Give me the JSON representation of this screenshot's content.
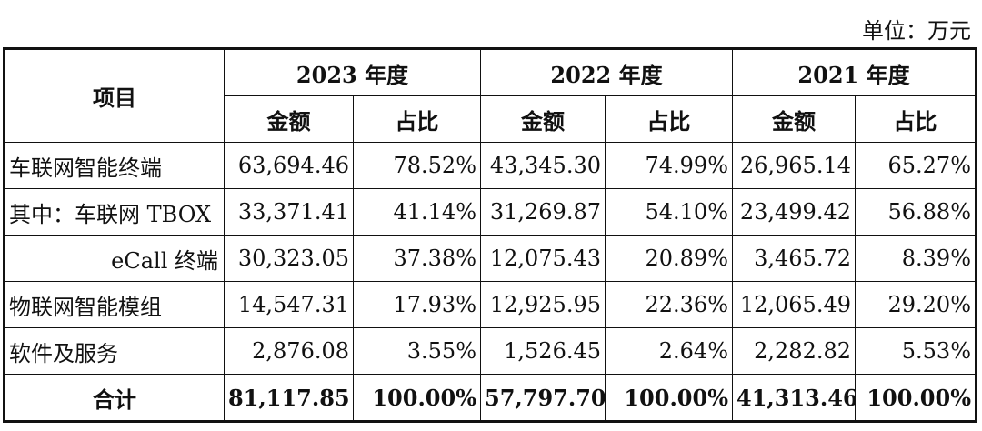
{
  "unit": "单位：万元",
  "header": {
    "item": "项目",
    "years": [
      "2023 年度",
      "2022 年度",
      "2021 年度"
    ],
    "amount": "金额",
    "share": "占比"
  },
  "rows": [
    {
      "label": "车联网智能终端",
      "v": [
        "63,694.46",
        "78.52%",
        "43,345.30",
        "74.99%",
        "26,965.14",
        "65.27%"
      ]
    },
    {
      "label": "其中：车联网 TBOX",
      "v": [
        "33,371.41",
        "41.14%",
        "31,269.87",
        "54.10%",
        "23,499.42",
        "56.88%"
      ]
    },
    {
      "label": "eCall 终端",
      "v": [
        "30,323.05",
        "37.38%",
        "12,075.43",
        "20.89%",
        "3,465.72",
        "8.39%"
      ]
    },
    {
      "label": "物联网智能模组",
      "v": [
        "14,547.31",
        "17.93%",
        "12,925.95",
        "22.36%",
        "12,065.49",
        "29.20%"
      ]
    },
    {
      "label": "软件及服务",
      "v": [
        "2,876.08",
        "3.55%",
        "1,526.45",
        "2.64%",
        "2,282.82",
        "5.53%"
      ]
    }
  ],
  "total": {
    "label": "合计",
    "v": [
      "81,117.85",
      "100.00%",
      "57,797.70",
      "100.00%",
      "41,313.46",
      "100.00%"
    ]
  }
}
